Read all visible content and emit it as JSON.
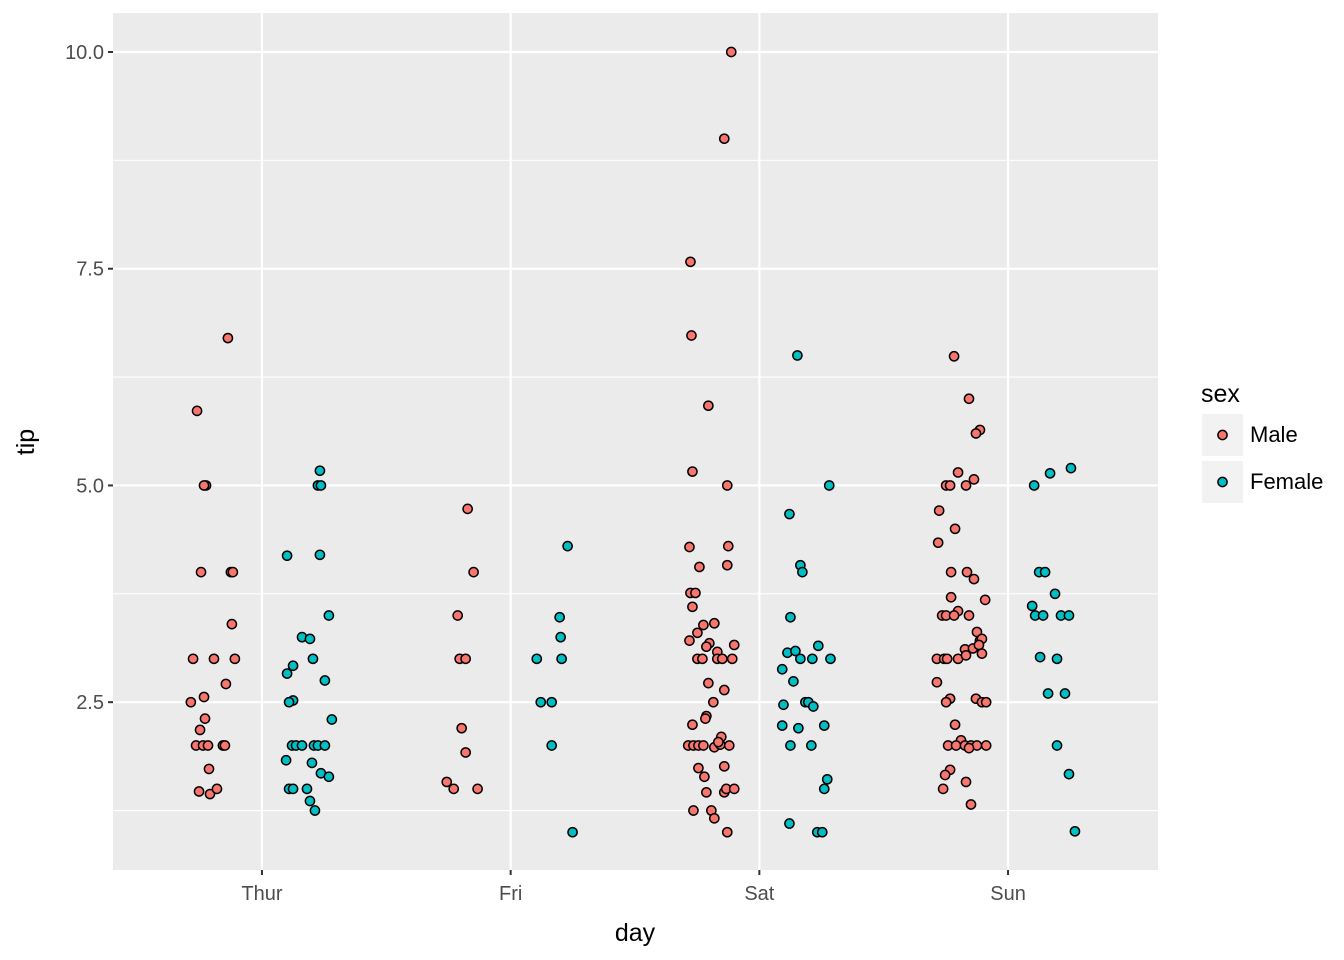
{
  "chart_data": {
    "type": "scatter",
    "title": "",
    "xlabel": "day",
    "ylabel": "tip",
    "categories": [
      "Thur",
      "Fri",
      "Sat",
      "Sun"
    ],
    "xlim": [
      0.401,
      4.603
    ],
    "ylim": [
      0.564,
      10.45
    ],
    "yticks": [
      2.5,
      5.0,
      7.5,
      10.0
    ],
    "ytick_labels": [
      "2.5",
      "5.0",
      "7.5",
      "10.0"
    ],
    "yminor": [
      1.25,
      3.75,
      6.25,
      8.75
    ],
    "grid": true,
    "legend": {
      "title": "sex",
      "placement": "right",
      "entries": [
        "Male",
        "Female"
      ]
    },
    "colors": {
      "Male": "#F8766D",
      "Female": "#00BFC4",
      "panel": "#EBEBEB",
      "grid": "#FFFFFF"
    },
    "series": [
      {
        "name": "Male",
        "points": [
          [
            0.739,
            5.86
          ],
          [
            0.863,
            6.7
          ],
          [
            0.775,
            5.0
          ],
          [
            0.767,
            5.0
          ],
          [
            0.755,
            4.0
          ],
          [
            0.875,
            4.0
          ],
          [
            0.883,
            4.0
          ],
          [
            0.879,
            3.4
          ],
          [
            0.723,
            3.0
          ],
          [
            0.807,
            3.0
          ],
          [
            0.891,
            3.0
          ],
          [
            0.855,
            2.71
          ],
          [
            0.767,
            2.56
          ],
          [
            0.714,
            2.5
          ],
          [
            0.771,
            2.31
          ],
          [
            0.751,
            2.18
          ],
          [
            0.735,
            2.0
          ],
          [
            0.763,
            2.0
          ],
          [
            0.783,
            2.0
          ],
          [
            0.843,
            2.0
          ],
          [
            0.851,
            2.0
          ],
          [
            0.787,
            1.73
          ],
          [
            0.747,
            1.47
          ],
          [
            0.791,
            1.44
          ],
          [
            0.819,
            1.5
          ],
          [
            1.827,
            4.73
          ],
          [
            1.851,
            4.0
          ],
          [
            1.787,
            3.5
          ],
          [
            1.795,
            3.0
          ],
          [
            1.819,
            3.0
          ],
          [
            1.803,
            2.2
          ],
          [
            1.819,
            1.92
          ],
          [
            1.743,
            1.58
          ],
          [
            1.771,
            1.5
          ],
          [
            1.867,
            1.5
          ],
          [
            2.887,
            10.0
          ],
          [
            2.859,
            9.0
          ],
          [
            2.723,
            7.58
          ],
          [
            2.727,
            6.73
          ],
          [
            2.795,
            5.92
          ],
          [
            2.731,
            5.16
          ],
          [
            2.871,
            5.0
          ],
          [
            2.719,
            4.29
          ],
          [
            2.875,
            4.3
          ],
          [
            2.759,
            4.06
          ],
          [
            2.871,
            4.08
          ],
          [
            2.723,
            3.76
          ],
          [
            2.743,
            3.76
          ],
          [
            2.731,
            3.6
          ],
          [
            2.819,
            3.41
          ],
          [
            2.775,
            3.39
          ],
          [
            2.751,
            3.3
          ],
          [
            2.719,
            3.21
          ],
          [
            2.799,
            3.18
          ],
          [
            2.787,
            3.14
          ],
          [
            2.899,
            3.16
          ],
          [
            2.831,
            3.08
          ],
          [
            2.751,
            3.0
          ],
          [
            2.771,
            3.0
          ],
          [
            2.831,
            3.0
          ],
          [
            2.851,
            3.0
          ],
          [
            2.891,
            3.0
          ],
          [
            2.795,
            2.72
          ],
          [
            2.859,
            2.64
          ],
          [
            2.815,
            2.5
          ],
          [
            2.731,
            2.24
          ],
          [
            2.787,
            2.34
          ],
          [
            2.783,
            2.31
          ],
          [
            2.847,
            2.1
          ],
          [
            2.714,
            2.0
          ],
          [
            2.735,
            2.0
          ],
          [
            2.755,
            2.0
          ],
          [
            2.775,
            2.0
          ],
          [
            2.819,
            1.98
          ],
          [
            2.843,
            2.01
          ],
          [
            2.879,
            2.0
          ],
          [
            2.835,
            2.04
          ],
          [
            2.755,
            1.74
          ],
          [
            2.859,
            1.76
          ],
          [
            2.779,
            1.64
          ],
          [
            2.787,
            1.46
          ],
          [
            2.859,
            1.46
          ],
          [
            2.867,
            1.5
          ],
          [
            2.899,
            1.5
          ],
          [
            2.735,
            1.25
          ],
          [
            2.807,
            1.25
          ],
          [
            2.819,
            1.16
          ],
          [
            2.871,
            1.0
          ],
          [
            3.783,
            6.49
          ],
          [
            3.843,
            6.0
          ],
          [
            3.887,
            5.64
          ],
          [
            3.871,
            5.6
          ],
          [
            3.799,
            5.15
          ],
          [
            3.863,
            5.07
          ],
          [
            3.751,
            5.0
          ],
          [
            3.767,
            5.0
          ],
          [
            3.831,
            5.0
          ],
          [
            3.723,
            4.71
          ],
          [
            3.787,
            4.5
          ],
          [
            3.719,
            4.34
          ],
          [
            3.771,
            4.0
          ],
          [
            3.835,
            4.0
          ],
          [
            3.863,
            3.92
          ],
          [
            3.771,
            3.71
          ],
          [
            3.908,
            3.68
          ],
          [
            3.799,
            3.55
          ],
          [
            3.735,
            3.5
          ],
          [
            3.751,
            3.5
          ],
          [
            3.783,
            3.5
          ],
          [
            3.843,
            3.5
          ],
          [
            3.875,
            3.31
          ],
          [
            3.887,
            3.21
          ],
          [
            3.895,
            3.23
          ],
          [
            3.827,
            3.11
          ],
          [
            3.859,
            3.12
          ],
          [
            3.883,
            3.16
          ],
          [
            3.714,
            3.0
          ],
          [
            3.743,
            3.0
          ],
          [
            3.755,
            3.0
          ],
          [
            3.799,
            3.0
          ],
          [
            3.895,
            3.06
          ],
          [
            3.831,
            3.04
          ],
          [
            3.714,
            2.73
          ],
          [
            3.767,
            2.54
          ],
          [
            3.751,
            2.5
          ],
          [
            3.871,
            2.54
          ],
          [
            3.895,
            2.5
          ],
          [
            3.912,
            2.5
          ],
          [
            3.787,
            2.24
          ],
          [
            3.811,
            2.06
          ],
          [
            3.759,
            2.0
          ],
          [
            3.791,
            2.0
          ],
          [
            3.827,
            2.0
          ],
          [
            3.851,
            2.0
          ],
          [
            3.875,
            2.0
          ],
          [
            3.912,
            2.0
          ],
          [
            3.843,
            1.97
          ],
          [
            3.767,
            1.72
          ],
          [
            3.747,
            1.66
          ],
          [
            3.831,
            1.58
          ],
          [
            3.739,
            1.5
          ],
          [
            3.851,
            1.32
          ]
        ]
      },
      {
        "name": "Female",
        "points": [
          [
            1.233,
            5.17
          ],
          [
            1.225,
            5.0
          ],
          [
            1.237,
            5.0
          ],
          [
            1.101,
            4.19
          ],
          [
            1.233,
            4.2
          ],
          [
            1.269,
            3.5
          ],
          [
            1.161,
            3.25
          ],
          [
            1.193,
            3.23
          ],
          [
            1.205,
            3.0
          ],
          [
            1.125,
            2.92
          ],
          [
            1.101,
            2.83
          ],
          [
            1.253,
            2.75
          ],
          [
            1.125,
            2.52
          ],
          [
            1.109,
            2.5
          ],
          [
            1.281,
            2.3
          ],
          [
            1.121,
            2.0
          ],
          [
            1.137,
            2.0
          ],
          [
            1.161,
            2.0
          ],
          [
            1.209,
            2.0
          ],
          [
            1.225,
            2.0
          ],
          [
            1.253,
            2.0
          ],
          [
            1.097,
            1.83
          ],
          [
            1.201,
            1.8
          ],
          [
            1.237,
            1.68
          ],
          [
            1.269,
            1.64
          ],
          [
            1.109,
            1.5
          ],
          [
            1.125,
            1.5
          ],
          [
            1.181,
            1.5
          ],
          [
            1.193,
            1.36
          ],
          [
            1.213,
            1.25
          ],
          [
            2.229,
            4.3
          ],
          [
            2.197,
            3.48
          ],
          [
            2.201,
            3.25
          ],
          [
            2.105,
            3.0
          ],
          [
            2.205,
            3.0
          ],
          [
            2.121,
            2.5
          ],
          [
            2.165,
            2.5
          ],
          [
            2.165,
            2.0
          ],
          [
            2.249,
            1.0
          ],
          [
            3.153,
            6.5
          ],
          [
            3.121,
            4.67
          ],
          [
            3.165,
            4.08
          ],
          [
            3.173,
            4.0
          ],
          [
            3.281,
            5.0
          ],
          [
            3.125,
            3.48
          ],
          [
            3.237,
            3.15
          ],
          [
            3.113,
            3.07
          ],
          [
            3.145,
            3.09
          ],
          [
            3.165,
            3.0
          ],
          [
            3.213,
            3.0
          ],
          [
            3.286,
            3.0
          ],
          [
            3.092,
            2.88
          ],
          [
            3.137,
            2.74
          ],
          [
            3.185,
            2.5
          ],
          [
            3.197,
            2.5
          ],
          [
            3.217,
            2.45
          ],
          [
            3.097,
            2.47
          ],
          [
            3.092,
            2.23
          ],
          [
            3.157,
            2.2
          ],
          [
            3.261,
            2.23
          ],
          [
            3.125,
            2.0
          ],
          [
            3.209,
            2.0
          ],
          [
            3.273,
            1.61
          ],
          [
            3.261,
            1.5
          ],
          [
            3.121,
            1.1
          ],
          [
            3.233,
            1.0
          ],
          [
            3.253,
            1.0
          ],
          [
            4.253,
            5.2
          ],
          [
            4.169,
            5.14
          ],
          [
            4.105,
            5.0
          ],
          [
            4.125,
            4.0
          ],
          [
            4.149,
            4.0
          ],
          [
            4.189,
            3.75
          ],
          [
            4.097,
            3.61
          ],
          [
            4.109,
            3.5
          ],
          [
            4.141,
            3.5
          ],
          [
            4.213,
            3.5
          ],
          [
            4.245,
            3.5
          ],
          [
            4.129,
            3.02
          ],
          [
            4.197,
            3.0
          ],
          [
            4.161,
            2.6
          ],
          [
            4.229,
            2.6
          ],
          [
            4.197,
            2.0
          ],
          [
            4.245,
            1.67
          ],
          [
            4.269,
            1.01
          ]
        ]
      }
    ]
  }
}
